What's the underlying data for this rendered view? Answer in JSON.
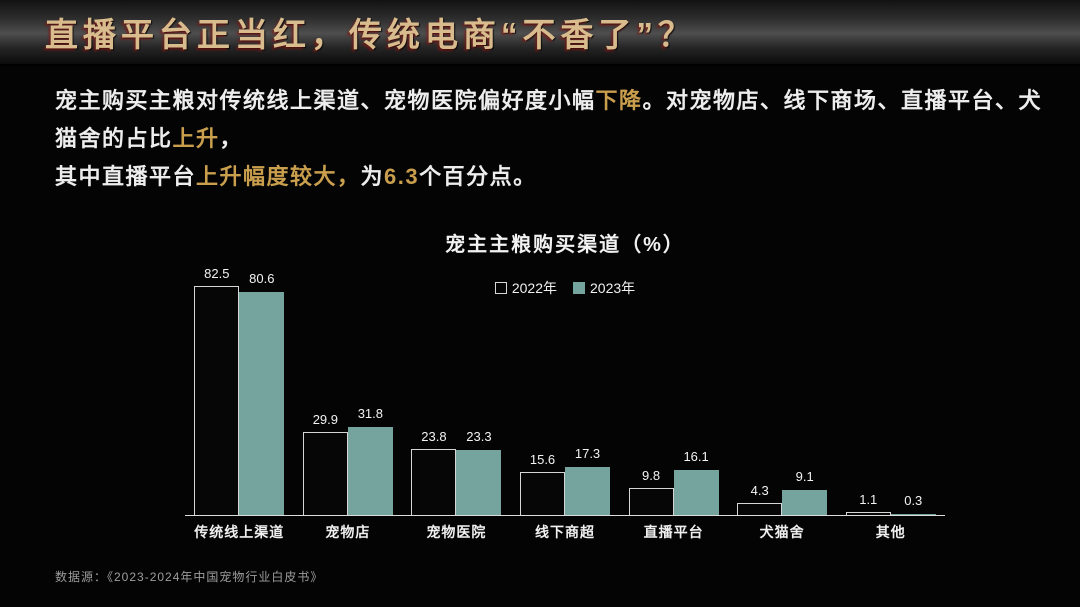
{
  "header": {
    "title": "直播平台正当红，传统电商“不香了”？"
  },
  "intro": {
    "lines": [
      {
        "segments": [
          {
            "text": "宠主购买主粮对传统线上渠道、宠物医院偏好度小幅",
            "highlight": false
          },
          {
            "text": "下降",
            "highlight": true
          },
          {
            "text": "。对宠物店、线下商场、直播平台、犬猫舍的占比",
            "highlight": false
          },
          {
            "text": "上升",
            "highlight": true
          },
          {
            "text": "，",
            "highlight": false
          }
        ]
      },
      {
        "segments": [
          {
            "text": "其中直播平台",
            "highlight": false
          },
          {
            "text": "上升幅度较大，",
            "highlight": true
          },
          {
            "text": "为",
            "highlight": false
          },
          {
            "text": "6.3",
            "highlight": true
          },
          {
            "text": "个百分点。",
            "highlight": false
          }
        ]
      }
    ],
    "highlight_color": "#c99f4e",
    "text_color": "#ededed"
  },
  "chart_data": {
    "type": "bar",
    "title": "宠主主粮购买渠道（%）",
    "categories": [
      "传统线上渠道",
      "宠物店",
      "宠物医院",
      "线下商超",
      "直播平台",
      "犬猫舍",
      "其他"
    ],
    "series": [
      {
        "name": "2022年",
        "style": "outline",
        "fill": "#060606",
        "border": "#d6d6d6",
        "values": [
          82.5,
          29.9,
          23.8,
          15.6,
          9.8,
          4.3,
          1.1
        ]
      },
      {
        "name": "2023年",
        "style": "fill",
        "fill": "#75a39d",
        "border": "#75a39d",
        "values": [
          80.6,
          31.8,
          23.3,
          17.3,
          16.1,
          9.1,
          0.3
        ]
      }
    ],
    "ylim": [
      0,
      90
    ],
    "grid": false,
    "legend_position": "top-center",
    "value_labels": true,
    "axis_line_color": "#dcdcdc"
  },
  "footer": {
    "source": "数据源：《2023-2024年中国宠物行业白皮书》"
  }
}
